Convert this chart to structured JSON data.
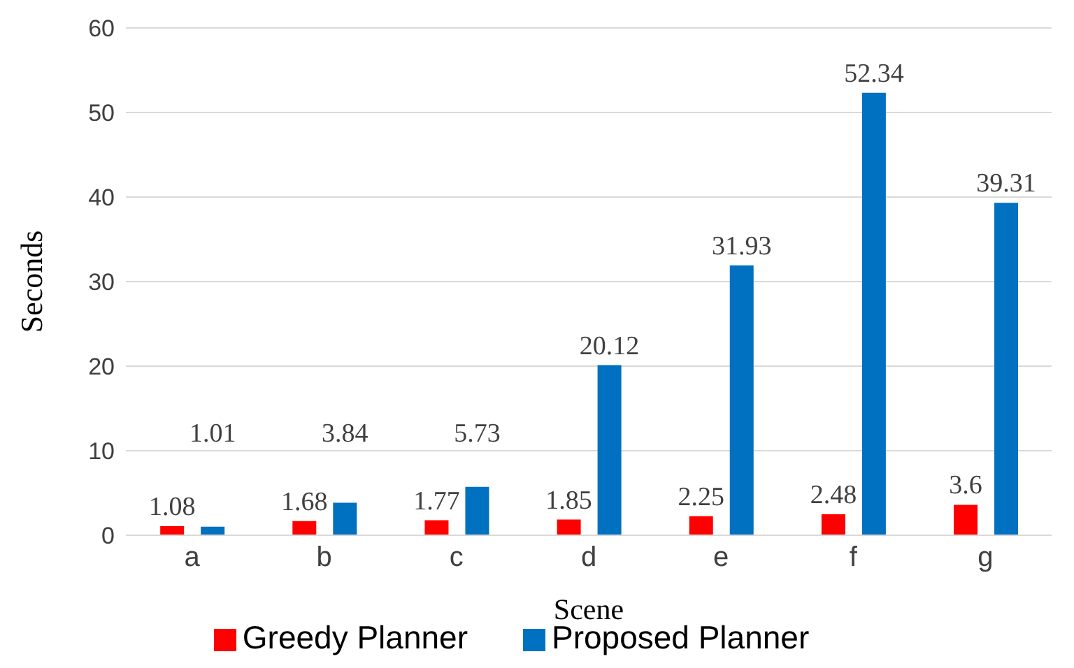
{
  "chart_data": {
    "type": "bar",
    "xlabel": "Scene",
    "ylabel": "Seconds",
    "categories": [
      "a",
      "b",
      "c",
      "d",
      "e",
      "f",
      "g"
    ],
    "series": [
      {
        "name": "Greedy Planner",
        "color": "#ff0000",
        "values": [
          1.08,
          1.68,
          1.77,
          1.85,
          2.25,
          2.48,
          3.6
        ]
      },
      {
        "name": "Proposed Planner",
        "color": "#0070c0",
        "values": [
          1.01,
          3.84,
          5.73,
          20.12,
          31.93,
          52.34,
          39.31
        ]
      }
    ],
    "ylim": [
      0,
      60
    ],
    "yticks": [
      0,
      10,
      20,
      30,
      40,
      50,
      60
    ],
    "grid": "y",
    "legend": "bottom",
    "data_labels": true
  }
}
